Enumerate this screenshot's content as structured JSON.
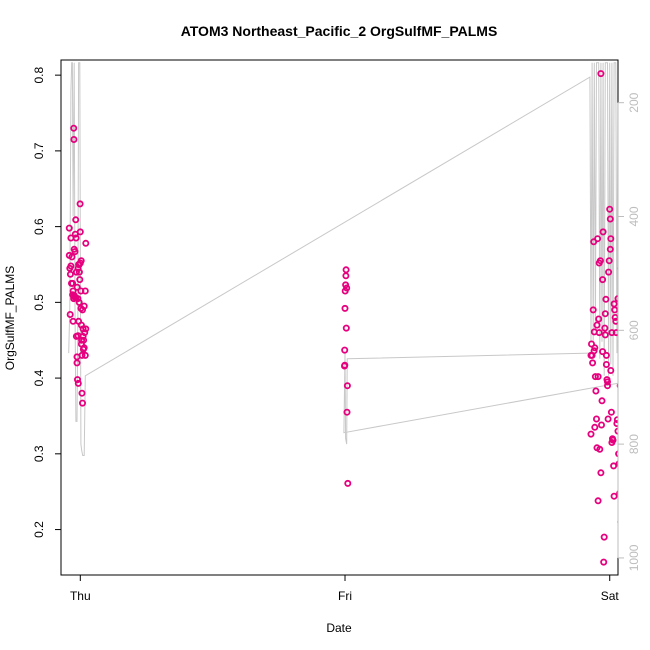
{
  "chart_data": {
    "type": "scatter",
    "title": "ATOM3 Northeast_Pacific_2 OrgSulfMF_PALMS",
    "xlabel": "Date",
    "ylabel": "OrgSulfMF_PALMS",
    "x_ticks": [
      "Thu",
      "Fri",
      "Sat"
    ],
    "x_range_hours": [
      -1.75,
      48.75
    ],
    "ylim": [
      0.14,
      0.82
    ],
    "y_ticks": [
      0.2,
      0.3,
      0.4,
      0.5,
      0.6,
      0.7,
      0.8
    ],
    "y2_range": [
      1030,
      125
    ],
    "y2_ticks": [
      200,
      400,
      600,
      800,
      1000
    ],
    "grid": false,
    "colors": {
      "points": "#e6007e",
      "altitude_line": "#c8c8c8",
      "axis": "#000000",
      "right_axis": "#bdbdbd"
    },
    "series": [
      {
        "type": "scatter",
        "points": [
          [
            -1.0,
            0.598
          ],
          [
            -1.0,
            0.562
          ],
          [
            -0.95,
            0.545
          ],
          [
            -0.9,
            0.537
          ],
          [
            -0.92,
            0.484
          ],
          [
            -0.85,
            0.585
          ],
          [
            -0.85,
            0.548
          ],
          [
            -0.8,
            0.525
          ],
          [
            -0.75,
            0.56
          ],
          [
            -0.7,
            0.525
          ],
          [
            -0.7,
            0.51
          ],
          [
            -0.65,
            0.515
          ],
          [
            -0.6,
            0.73
          ],
          [
            -0.58,
            0.715
          ],
          [
            -0.55,
            0.509
          ],
          [
            -0.55,
            0.57
          ],
          [
            -0.5,
            0.507
          ],
          [
            -0.45,
            0.59
          ],
          [
            -0.42,
            0.609
          ],
          [
            -0.4,
            0.506
          ],
          [
            -0.38,
            0.585
          ],
          [
            -0.35,
            0.455
          ],
          [
            -0.3,
            0.428
          ],
          [
            -0.3,
            0.42
          ],
          [
            -0.25,
            0.398
          ],
          [
            -0.2,
            0.456
          ],
          [
            -0.2,
            0.545
          ],
          [
            -0.18,
            0.393
          ],
          [
            -0.15,
            0.475
          ],
          [
            -0.15,
            0.55
          ],
          [
            -0.1,
            0.55
          ],
          [
            -0.08,
            0.54
          ],
          [
            -0.05,
            0.53
          ],
          [
            -0.02,
            0.63
          ],
          [
            0.0,
            0.593
          ],
          [
            0.0,
            0.552
          ],
          [
            0.05,
            0.515
          ],
          [
            0.05,
            0.492
          ],
          [
            0.1,
            0.47
          ],
          [
            0.1,
            0.445
          ],
          [
            0.15,
            0.43
          ],
          [
            0.15,
            0.38
          ],
          [
            0.2,
            0.367
          ],
          [
            0.2,
            0.49
          ],
          [
            0.25,
            0.465
          ],
          [
            0.25,
            0.455
          ],
          [
            0.3,
            0.45
          ],
          [
            0.35,
            0.495
          ],
          [
            0.35,
            0.44
          ],
          [
            0.4,
            0.46
          ],
          [
            0.45,
            0.43
          ],
          [
            0.45,
            0.515
          ],
          [
            0.5,
            0.465
          ],
          [
            0.5,
            0.578
          ],
          [
            0.08,
            0.555
          ],
          [
            -0.65,
            0.475
          ],
          [
            0.12,
            0.45
          ],
          [
            -0.35,
            0.54
          ],
          [
            -0.28,
            0.52
          ],
          [
            0.28,
            0.438
          ],
          [
            -0.48,
            0.567
          ],
          [
            -0.1,
            0.5
          ],
          [
            -0.22,
            0.505
          ],
          [
            -0.6,
            0.505
          ],
          [
            23.95,
            0.416
          ],
          [
            23.97,
            0.437
          ],
          [
            24.0,
            0.492
          ],
          [
            24.02,
            0.515
          ],
          [
            24.05,
            0.523
          ],
          [
            24.08,
            0.535
          ],
          [
            24.1,
            0.543
          ],
          [
            24.12,
            0.466
          ],
          [
            24.15,
            0.519
          ],
          [
            24.18,
            0.355
          ],
          [
            24.22,
            0.39
          ],
          [
            24.25,
            0.261
          ],
          [
            23.98,
            0.417
          ],
          [
            46.3,
            0.43
          ],
          [
            46.3,
            0.326
          ],
          [
            46.35,
            0.445
          ],
          [
            46.4,
            0.43
          ],
          [
            46.45,
            0.42
          ],
          [
            46.5,
            0.49
          ],
          [
            46.55,
            0.58
          ],
          [
            46.58,
            0.436
          ],
          [
            46.6,
            0.461
          ],
          [
            46.65,
            0.44
          ],
          [
            46.65,
            0.335
          ],
          [
            46.7,
            0.402
          ],
          [
            46.75,
            0.383
          ],
          [
            46.8,
            0.346
          ],
          [
            46.85,
            0.47
          ],
          [
            46.85,
            0.308
          ],
          [
            46.9,
            0.584
          ],
          [
            46.95,
            0.238
          ],
          [
            47.0,
            0.478
          ],
          [
            47.05,
            0.46
          ],
          [
            47.05,
            0.552
          ],
          [
            47.1,
            0.306
          ],
          [
            47.15,
            0.555
          ],
          [
            47.2,
            0.802
          ],
          [
            47.2,
            0.275
          ],
          [
            47.25,
            0.338
          ],
          [
            47.3,
            0.37
          ],
          [
            47.35,
            0.435
          ],
          [
            47.4,
            0.593
          ],
          [
            47.45,
            0.157
          ],
          [
            47.5,
            0.19
          ],
          [
            47.55,
            0.466
          ],
          [
            47.6,
            0.457
          ],
          [
            47.65,
            0.504
          ],
          [
            47.7,
            0.43
          ],
          [
            47.7,
            0.418
          ],
          [
            47.75,
            0.398
          ],
          [
            47.8,
            0.39
          ],
          [
            47.85,
            0.346
          ],
          [
            47.9,
            0.54
          ],
          [
            47.95,
            0.555
          ],
          [
            48.0,
            0.623
          ],
          [
            48.05,
            0.61
          ],
          [
            48.05,
            0.57
          ],
          [
            48.1,
            0.584
          ],
          [
            48.1,
            0.41
          ],
          [
            48.15,
            0.355
          ],
          [
            48.2,
            0.315
          ],
          [
            48.25,
            0.32
          ],
          [
            48.3,
            0.318
          ],
          [
            48.35,
            0.284
          ],
          [
            48.4,
            0.244
          ],
          [
            48.45,
            0.49
          ],
          [
            48.5,
            0.48
          ],
          [
            48.55,
            0.475
          ],
          [
            48.6,
            0.46
          ],
          [
            48.65,
            0.34
          ],
          [
            48.7,
            0.345
          ],
          [
            48.75,
            0.33
          ],
          [
            48.8,
            0.3
          ],
          [
            48.85,
            0.287
          ],
          [
            48.9,
            0.248
          ],
          [
            48.95,
            0.39
          ],
          [
            49.0,
            0.21
          ],
          [
            49.05,
            0.245
          ],
          [
            49.1,
            0.27
          ],
          [
            49.15,
            0.3
          ],
          [
            49.2,
            0.297
          ],
          [
            49.25,
            0.448
          ],
          [
            49.3,
            0.477
          ],
          [
            49.35,
            0.523
          ],
          [
            49.4,
            0.495
          ],
          [
            49.45,
            0.488
          ],
          [
            49.5,
            0.448
          ],
          [
            49.55,
            0.48
          ],
          [
            49.6,
            0.438
          ],
          [
            49.65,
            0.338
          ],
          [
            49.7,
            0.213
          ],
          [
            49.75,
            0.249
          ],
          [
            49.8,
            0.29
          ],
          [
            46.95,
            0.402
          ],
          [
            47.35,
            0.53
          ],
          [
            47.8,
            0.395
          ],
          [
            48.4,
            0.498
          ],
          [
            48.75,
            0.505
          ],
          [
            49.0,
            0.545
          ],
          [
            47.6,
            0.485
          ],
          [
            48.2,
            0.46
          ]
        ]
      },
      {
        "type": "line",
        "name_on_right_axis": true,
        "points": [
          [
            -1.05,
            640
          ],
          [
            -0.95,
            560
          ],
          [
            -0.85,
            180
          ],
          [
            -0.78,
            130
          ],
          [
            -0.72,
            130
          ],
          [
            -0.65,
            400
          ],
          [
            -0.55,
            130
          ],
          [
            -0.48,
            560
          ],
          [
            -0.4,
            760
          ],
          [
            -0.3,
            760
          ],
          [
            -0.22,
            560
          ],
          [
            -0.15,
            130
          ],
          [
            -0.05,
            130
          ],
          [
            0.05,
            800
          ],
          [
            0.12,
            810
          ],
          [
            0.22,
            820
          ],
          [
            0.35,
            820
          ],
          [
            0.45,
            680
          ],
          [
            46.2,
            155
          ],
          [
            46.3,
            620
          ],
          [
            46.4,
            130
          ],
          [
            46.5,
            620
          ],
          [
            46.6,
            130
          ],
          [
            46.7,
            600
          ],
          [
            46.8,
            130
          ],
          [
            47.0,
            130
          ],
          [
            47.1,
            650
          ],
          [
            47.2,
            130
          ],
          [
            47.3,
            620
          ],
          [
            47.4,
            130
          ],
          [
            47.5,
            680
          ],
          [
            47.6,
            130
          ],
          [
            47.8,
            130
          ],
          [
            47.9,
            680
          ],
          [
            48.0,
            130
          ],
          [
            48.1,
            660
          ],
          [
            48.2,
            130
          ],
          [
            48.3,
            680
          ],
          [
            48.4,
            130
          ],
          [
            48.55,
            130
          ],
          [
            48.65,
            640
          ],
          [
            48.75,
            130
          ],
          [
            48.85,
            670
          ],
          [
            48.95,
            130
          ],
          [
            49.1,
            130
          ],
          [
            49.2,
            660
          ],
          [
            49.3,
            130
          ],
          [
            49.4,
            130
          ],
          [
            49.5,
            690
          ],
          [
            49.6,
            690
          ],
          [
            23.9,
            780
          ],
          [
            24.0,
            640
          ],
          [
            24.05,
            790
          ],
          [
            24.15,
            800
          ],
          [
            24.2,
            650
          ],
          [
            46.2,
            640
          ]
        ]
      }
    ]
  }
}
